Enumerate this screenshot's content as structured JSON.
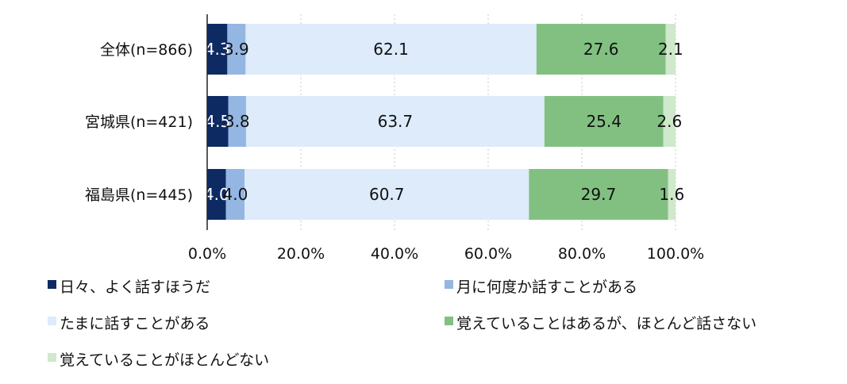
{
  "chart_data": {
    "type": "bar",
    "orientation": "horizontal",
    "stacked": true,
    "percent_stacked": true,
    "title": "",
    "categories": [
      "全体(n=866)",
      "宮城県(n=421)",
      "福島県(n=445)"
    ],
    "series": [
      {
        "name": "日々、よく話すほうだ",
        "values": [
          4.3,
          4.5,
          4.0
        ],
        "color": "#0e2a63",
        "label_color": "#ffffff"
      },
      {
        "name": "月に何度か話すことがある",
        "values": [
          3.9,
          3.8,
          4.0
        ],
        "color": "#94b6e2",
        "label_color": "#111111"
      },
      {
        "name": "たまに話すことがある",
        "values": [
          62.1,
          63.7,
          60.7
        ],
        "color": "#ddebfa",
        "label_color": "#111111"
      },
      {
        "name": "覚えていることはあるが、ほとんど話さない",
        "values": [
          27.6,
          25.4,
          29.7
        ],
        "color": "#82c082",
        "label_color": "#111111"
      },
      {
        "name": "覚えていることがほとんどない",
        "values": [
          2.1,
          2.6,
          1.6
        ],
        "color": "#d0e8cc",
        "label_color": "#111111"
      }
    ],
    "xlim": [
      0,
      100
    ],
    "x_ticks": [
      "0.0%",
      "20.0%",
      "40.0%",
      "60.0%",
      "80.0%",
      "100.0%"
    ],
    "grid": true,
    "legend_position": "bottom"
  }
}
